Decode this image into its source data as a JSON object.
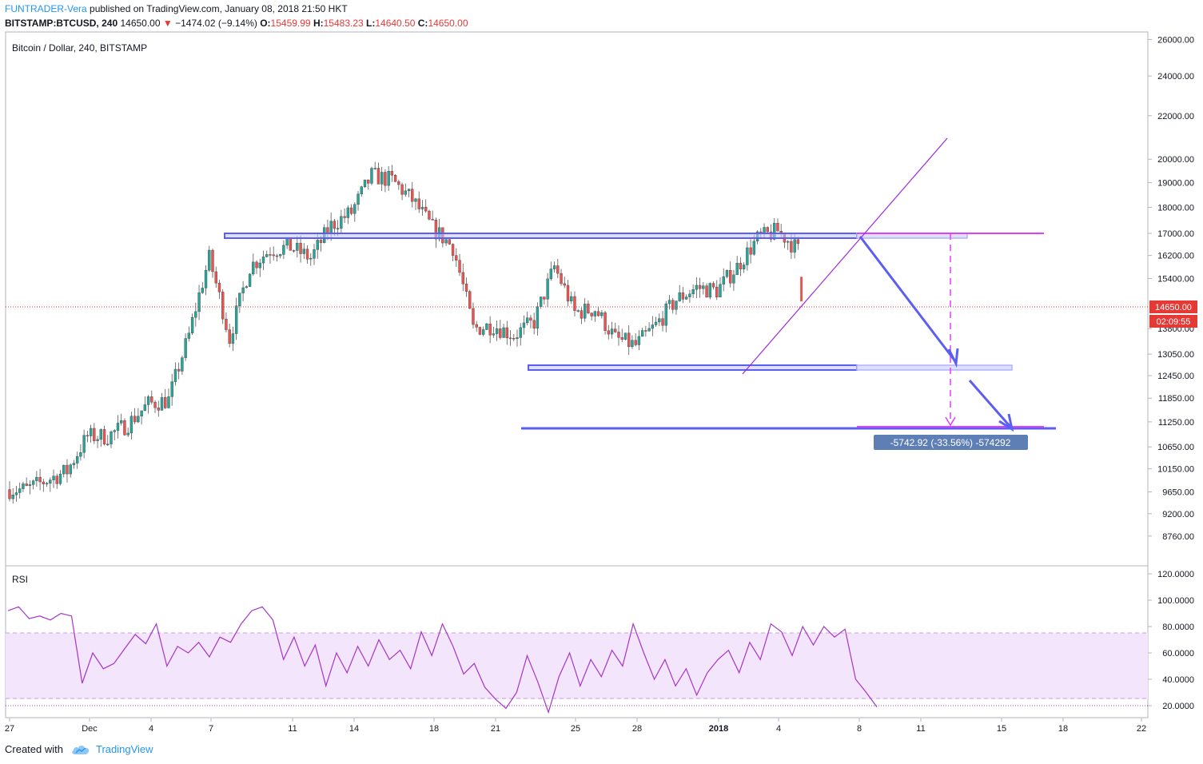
{
  "header": {
    "author": "FUNTRADER-Vera",
    "published_text": "published on TradingView.com, January 08, 2018 21:50 HKT",
    "symbol": "BITSTAMP:BTCUSD, 240",
    "last": "14650.00",
    "change": "−1474.02 (−9.14%)",
    "open_label": "O:",
    "open": "15459.99",
    "high_label": "H:",
    "high": "15483.23",
    "low_label": "L:",
    "low": "14640.50",
    "close_label": "C:",
    "close": "14650.00"
  },
  "footer": {
    "created_with": "Created with",
    "brand": "TradingView"
  },
  "colors": {
    "up": "#26a69a",
    "down": "#ef5350",
    "drawing_blue": "#5b5ef2",
    "drawing_magenta": "#e040fb",
    "trend_purple": "#9c27e0",
    "rsi_line": "#a634c9",
    "rsi_band": "#f3e5fb",
    "price_tag": "#e53935",
    "measure_box": "#5d7fb6"
  },
  "chart_data": [
    {
      "type": "candlestick",
      "title": "Bitcoin / Dollar, 240, BITSTAMP",
      "y_scale": "log",
      "ylim": [
        8500,
        26200
      ],
      "y_ticks": [
        "26000.00",
        "24000.00",
        "22000.00",
        "20000.00",
        "19000.00",
        "18000.00",
        "17000.00",
        "16200.00",
        "15400.00",
        "13800.00",
        "13050.00",
        "12450.00",
        "11850.00",
        "11250.00",
        "10650.00",
        "10150.00",
        "9650.00",
        "9200.00",
        "8760.00"
      ],
      "last_price": "14650.00",
      "countdown": "02:09:55",
      "x_ticks": [
        "27",
        "Dec",
        "4",
        "7",
        "11",
        "14",
        "18",
        "21",
        "25",
        "28",
        "2018",
        "4",
        "8",
        "11",
        "15",
        "18",
        "22"
      ],
      "close_series_daily": [
        9700,
        9900,
        10100,
        10900,
        10900,
        11200,
        11700,
        11800,
        13600,
        16100,
        13500,
        15800,
        16400,
        16500,
        16100,
        17300,
        17800,
        19300,
        19100,
        18300,
        17200,
        16500,
        13800,
        13900,
        13600,
        14000,
        15800,
        14300,
        14400,
        13500,
        13300,
        13900,
        14700,
        15100,
        15000,
        15800,
        16800,
        17100,
        16400
      ],
      "drawings": {
        "resistance_zone": 17050,
        "support_zone": 12880,
        "base_line": 11280,
        "target_line": 11330,
        "measure_label": "-5742.92 (-33.56%) -574292"
      }
    },
    {
      "type": "line",
      "title": "RSI",
      "ylim": [
        10,
        125
      ],
      "y_ticks": [
        "120.0000",
        "100.0000",
        "80.0000",
        "60.0000",
        "40.0000",
        "20.0000"
      ],
      "band": [
        25,
        75
      ],
      "values_sampled": [
        92,
        95,
        86,
        88,
        85,
        90,
        88,
        37,
        60,
        48,
        52,
        63,
        74,
        67,
        82,
        50,
        65,
        60,
        68,
        57,
        72,
        68,
        82,
        92,
        95,
        85,
        55,
        72,
        50,
        66,
        35,
        60,
        45,
        65,
        50,
        70,
        55,
        62,
        48,
        76,
        58,
        82,
        65,
        44,
        52,
        34,
        25,
        18,
        30,
        58,
        38,
        15,
        42,
        60,
        35,
        55,
        42,
        62,
        50,
        82,
        60,
        40,
        55,
        35,
        48,
        28,
        45,
        55,
        62,
        45,
        68,
        55,
        82,
        76,
        58,
        80,
        66,
        80,
        72,
        78,
        40,
        30,
        19
      ]
    }
  ]
}
